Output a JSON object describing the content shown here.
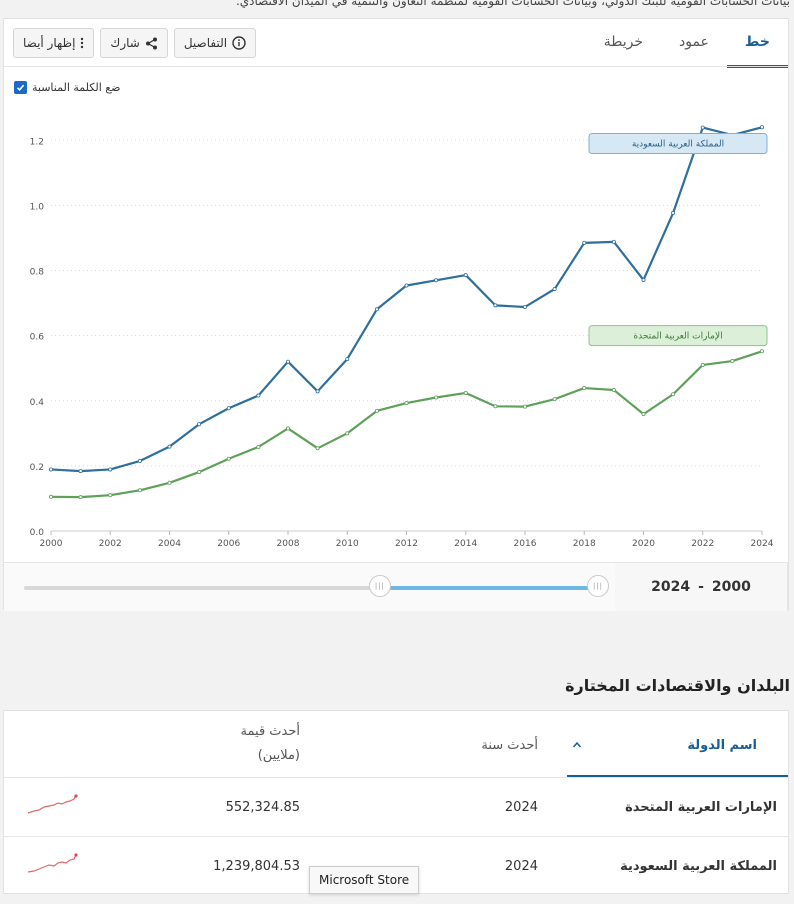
{
  "header": {
    "source_text": "بيانات الحسابات القومية للبنك الدولي، وبيانات الحسابات القومية لمنظمة التعاون والتنمية في الميدان الاقتصادي."
  },
  "tabs": [
    {
      "label": "خط",
      "active": true
    },
    {
      "label": "عمود",
      "active": false
    },
    {
      "label": "خريطة",
      "active": false
    }
  ],
  "actions": {
    "details": "التفاصيل",
    "share": "شارك",
    "show_also": "إظهار أيضا"
  },
  "options": {
    "label_checkbox": "ضع الكلمة المناسبة",
    "label_checked": true
  },
  "chart_data": {
    "type": "line",
    "x": [
      2000,
      2001,
      2002,
      2003,
      2004,
      2005,
      2006,
      2007,
      2008,
      2009,
      2010,
      2011,
      2012,
      2013,
      2014,
      2015,
      2016,
      2017,
      2018,
      2019,
      2020,
      2021,
      2022,
      2023,
      2024
    ],
    "series": [
      {
        "name": "المملكة العربية السعودية",
        "color": "#2f6f9e",
        "values": [
          0.189,
          0.184,
          0.189,
          0.215,
          0.259,
          0.328,
          0.377,
          0.416,
          0.52,
          0.429,
          0.528,
          0.681,
          0.754,
          0.77,
          0.786,
          0.693,
          0.688,
          0.743,
          0.885,
          0.888,
          0.771,
          0.977,
          1.239,
          1.216,
          1.24
        ]
      },
      {
        "name": "الإمارات العربية المتحدة",
        "color": "#5fa05a",
        "values": [
          0.105,
          0.104,
          0.11,
          0.125,
          0.148,
          0.181,
          0.222,
          0.258,
          0.315,
          0.254,
          0.3,
          0.369,
          0.393,
          0.41,
          0.424,
          0.383,
          0.382,
          0.405,
          0.439,
          0.433,
          0.359,
          0.42,
          0.51,
          0.522,
          0.552
        ]
      }
    ],
    "x_ticks": [
      "2000",
      "2002",
      "2004",
      "2006",
      "2008",
      "2010",
      "2012",
      "2014",
      "2016",
      "2018",
      "2020",
      "2022",
      "2024"
    ],
    "y_ticks": [
      "0.0",
      "0.2",
      "0.4",
      "0.6",
      "0.8",
      "1.0",
      "1.2"
    ],
    "xlim": [
      2000,
      2024
    ],
    "ylim": [
      0,
      1.25
    ],
    "grid": true,
    "legend": "inline-labels-right"
  },
  "range": {
    "start": "2000",
    "end": "2024",
    "separator": "-",
    "start_fraction": 0.62,
    "end_fraction": 1.0
  },
  "table": {
    "title": "البلدان والاقتصادات المختارة",
    "columns": {
      "country": "اسم الدولة",
      "year": "أحدث سنة",
      "value_line1": "أحدث قيمة",
      "value_line2": "(ملايين)"
    },
    "rows": [
      {
        "country": "الإمارات العربية المتحدة",
        "year": "2024",
        "value": "552,324.85"
      },
      {
        "country": "المملكة العربية السعودية",
        "year": "2024",
        "value": "1,239,804.53"
      }
    ]
  },
  "tooltip": {
    "text": "Microsoft Store"
  }
}
